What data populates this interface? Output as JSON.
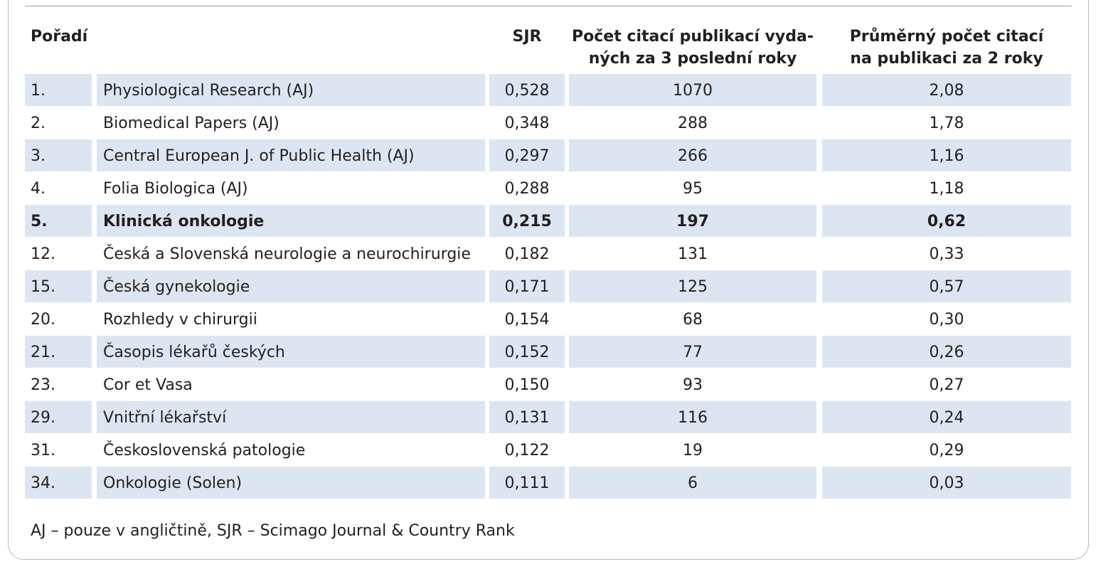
{
  "table": {
    "headers": {
      "rank": "Pořadí",
      "sjr": "SJR",
      "citations_line1": "Počet citací publikací vyda-",
      "citations_line2": "ných za 3 poslední roky",
      "average_line1": "Průměrný počet citací",
      "average_line2": "na publikaci za 2 roky"
    },
    "rows": [
      {
        "rank": "1.",
        "name": "Physiological Research (AJ)",
        "sjr": "0,528",
        "citations": "1070",
        "average": "2,08",
        "shaded": true,
        "bold": false
      },
      {
        "rank": "2.",
        "name": "Biomedical Papers (AJ)",
        "sjr": "0,348",
        "citations": "288",
        "average": "1,78",
        "shaded": false,
        "bold": false
      },
      {
        "rank": "3.",
        "name": "Central European J. of Public Health (AJ)",
        "sjr": "0,297",
        "citations": "266",
        "average": "1,16",
        "shaded": true,
        "bold": false
      },
      {
        "rank": "4.",
        "name": "Folia Biologica (AJ)",
        "sjr": "0,288",
        "citations": "95",
        "average": "1,18",
        "shaded": false,
        "bold": false
      },
      {
        "rank": "5.",
        "name": "Klinická onkologie",
        "sjr": "0,215",
        "citations": "197",
        "average": "0,62",
        "shaded": true,
        "bold": true
      },
      {
        "rank": "12.",
        "name": "Česká a Slovenská neurologie a neurochirurgie",
        "sjr": "0,182",
        "citations": "131",
        "average": "0,33",
        "shaded": false,
        "bold": false
      },
      {
        "rank": "15.",
        "name": "Česká gynekologie",
        "sjr": "0,171",
        "citations": "125",
        "average": "0,57",
        "shaded": true,
        "bold": false
      },
      {
        "rank": "20.",
        "name": "Rozhledy v chirurgii",
        "sjr": "0,154",
        "citations": "68",
        "average": "0,30",
        "shaded": false,
        "bold": false
      },
      {
        "rank": "21.",
        "name": "Časopis lékařů českých",
        "sjr": "0,152",
        "citations": "77",
        "average": "0,26",
        "shaded": true,
        "bold": false
      },
      {
        "rank": "23.",
        "name": "Cor et Vasa",
        "sjr": "0,150",
        "citations": "93",
        "average": "0,27",
        "shaded": false,
        "bold": false
      },
      {
        "rank": "29.",
        "name": "Vnitřní lékařství",
        "sjr": "0,131",
        "citations": "116",
        "average": "0,24",
        "shaded": true,
        "bold": false
      },
      {
        "rank": "31.",
        "name": "Československá patologie",
        "sjr": "0,122",
        "citations": "19",
        "average": "0,29",
        "shaded": false,
        "bold": false
      },
      {
        "rank": "34.",
        "name": "Onkologie (Solen)",
        "sjr": "0,111",
        "citations": "6",
        "average": "0,03",
        "shaded": true,
        "bold": false
      }
    ]
  },
  "footnote": "AJ – pouze v angličtině, SJR – Scimago Journal & Country Rank",
  "colors": {
    "row_shade": "#dce6f2",
    "text": "#231f20",
    "frame_border": "#b5b7b9"
  }
}
